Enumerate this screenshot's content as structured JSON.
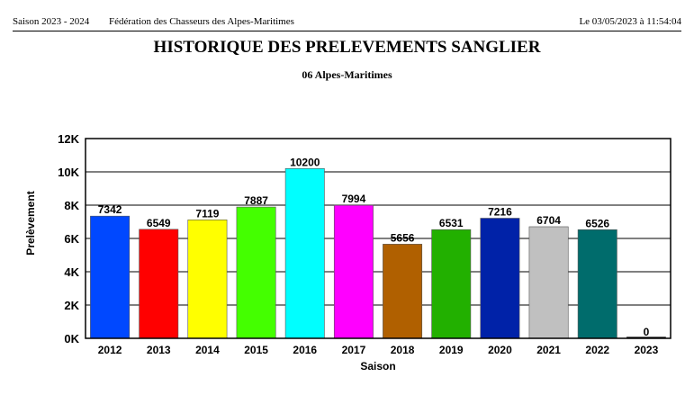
{
  "header": {
    "season": "Saison 2023 - 2024",
    "organization": "Fédération des Chasseurs des Alpes-Maritimes",
    "datetime": "Le  03/05/2023  à  11:54:04"
  },
  "chart_data": {
    "type": "bar",
    "title": "HISTORIQUE DES PRELEVEMENTS SANGLIER",
    "subtitle": "06 Alpes-Maritimes",
    "xlabel": "Saison",
    "ylabel": "Prelèvement",
    "categories": [
      "2012",
      "2013",
      "2014",
      "2015",
      "2016",
      "2017",
      "2018",
      "2019",
      "2020",
      "2021",
      "2022",
      "2023"
    ],
    "values": [
      7342,
      6549,
      7119,
      7887,
      10200,
      7994,
      5656,
      6531,
      7216,
      6704,
      6526,
      0
    ],
    "ylim": [
      0,
      12000
    ],
    "yticks": [
      0,
      2000,
      4000,
      6000,
      8000,
      10000,
      12000
    ],
    "ytick_labels": [
      "0K",
      "2K",
      "4K",
      "6K",
      "8K",
      "10K",
      "12K"
    ],
    "grid": true,
    "colors": [
      "#0048ff",
      "#ff0000",
      "#ffff00",
      "#44ff00",
      "#00ffff",
      "#ff00ff",
      "#b06000",
      "#22b000",
      "#0022a8",
      "#c0c0c0",
      "#006c6c",
      "#000000"
    ]
  }
}
